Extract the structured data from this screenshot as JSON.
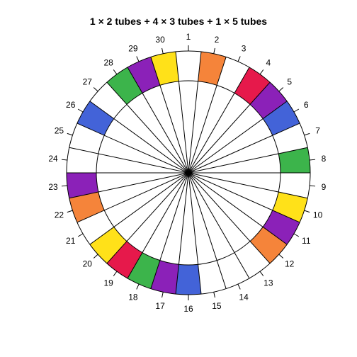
{
  "title": "1 × 2 tubes + 4 × 3 tubes + 1 × 5 tubes",
  "rotor": {
    "position_labels": [
      "1",
      "2",
      "3",
      "4",
      "5",
      "6",
      "7",
      "8",
      "9",
      "10",
      "11",
      "12",
      "13",
      "14",
      "15",
      "16",
      "17",
      "18",
      "19",
      "20",
      "21",
      "22",
      "23",
      "24",
      "25",
      "26",
      "27",
      "28",
      "29",
      "30"
    ],
    "slots": [
      {
        "position": 1,
        "color": "#ffffff"
      },
      {
        "position": 2,
        "color": "#f5843a"
      },
      {
        "position": 3,
        "color": "#ffffff"
      },
      {
        "position": 4,
        "color": "#e6194b"
      },
      {
        "position": 5,
        "color": "#8b21b8"
      },
      {
        "position": 6,
        "color": "#4363d8"
      },
      {
        "position": 7,
        "color": "#ffffff"
      },
      {
        "position": 8,
        "color": "#3cb44b"
      },
      {
        "position": 9,
        "color": "#ffffff"
      },
      {
        "position": 10,
        "color": "#ffe119"
      },
      {
        "position": 11,
        "color": "#8b21b8"
      },
      {
        "position": 12,
        "color": "#f5843a"
      },
      {
        "position": 13,
        "color": "#ffffff"
      },
      {
        "position": 14,
        "color": "#ffffff"
      },
      {
        "position": 15,
        "color": "#ffffff"
      },
      {
        "position": 16,
        "color": "#4363d8"
      },
      {
        "position": 17,
        "color": "#8b21b8"
      },
      {
        "position": 18,
        "color": "#3cb44b"
      },
      {
        "position": 19,
        "color": "#e6194b"
      },
      {
        "position": 20,
        "color": "#ffe119"
      },
      {
        "position": 21,
        "color": "#ffffff"
      },
      {
        "position": 22,
        "color": "#f5843a"
      },
      {
        "position": 23,
        "color": "#8b21b8"
      },
      {
        "position": 24,
        "color": "#ffffff"
      },
      {
        "position": 25,
        "color": "#ffffff"
      },
      {
        "position": 26,
        "color": "#4363d8"
      },
      {
        "position": 27,
        "color": "#ffffff"
      },
      {
        "position": 28,
        "color": "#3cb44b"
      },
      {
        "position": 29,
        "color": "#8b21b8"
      },
      {
        "position": 30,
        "color": "#ffe119"
      }
    ]
  }
}
